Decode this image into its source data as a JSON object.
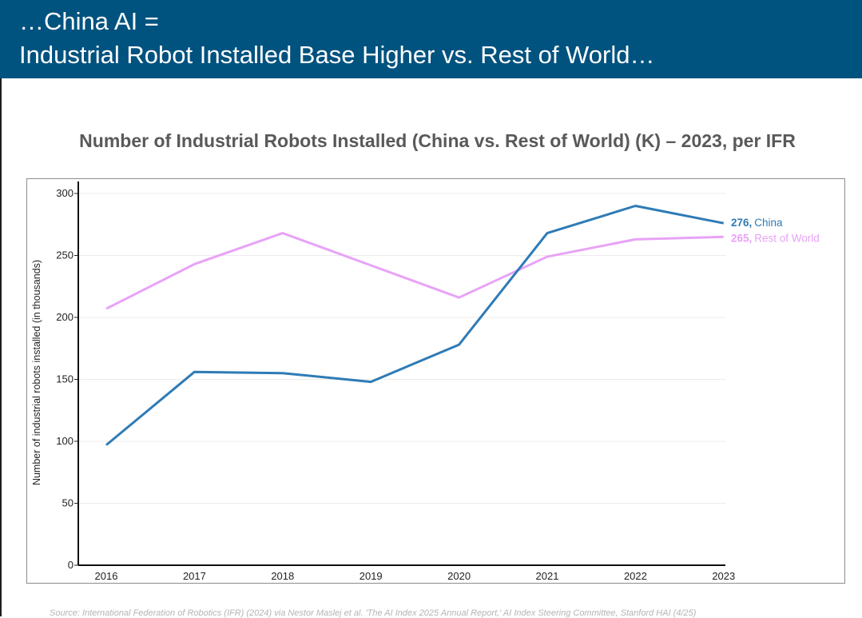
{
  "header": {
    "line1": "…China AI =",
    "line2": "Industrial Robot Installed Base Higher vs. Rest of World…"
  },
  "chart_title": "Number of Industrial Robots Installed (China vs. Rest of World) (K) – 2023, per IFR",
  "source": "Source: International Federation of Robotics (IFR) (2024) via Nestor Maslej et al. 'The AI Index 2025 Annual Report,' AI Index Steering Committee, Stanford HAI (4/25)",
  "chart_data": {
    "type": "line",
    "title": "Number of Industrial Robots Installed (China vs. Rest of World) (K) – 2023, per IFR",
    "ylabel": "Number of industrial robots installed (in thousands)",
    "xlabel": "",
    "x": [
      "2016",
      "2017",
      "2018",
      "2019",
      "2020",
      "2021",
      "2022",
      "2023"
    ],
    "ylim": [
      0,
      300
    ],
    "yticks": [
      0,
      50,
      100,
      150,
      200,
      250,
      300
    ],
    "grid": true,
    "series": [
      {
        "name": "China",
        "color": "#2e7bb6",
        "values": [
          97,
          156,
          155,
          148,
          178,
          268,
          290,
          276
        ],
        "end_label_value": "276,",
        "end_label_name": "China"
      },
      {
        "name": "Rest of World",
        "color": "#e8a3f7",
        "values": [
          207,
          243,
          268,
          242,
          216,
          249,
          263,
          265
        ],
        "end_label_value": "265,",
        "end_label_name": "Rest of World"
      }
    ]
  }
}
